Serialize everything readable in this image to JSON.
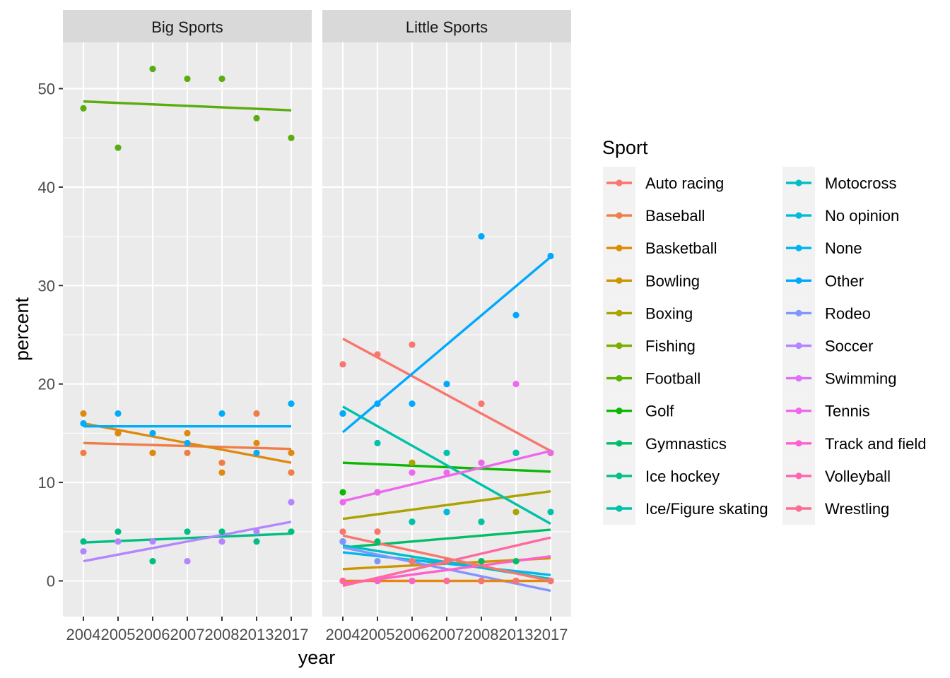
{
  "chart_data": {
    "type": "scatter",
    "xlabel": "year",
    "ylabel": "percent",
    "x_categories": [
      "2004",
      "2005",
      "2006",
      "2007",
      "2008",
      "2013",
      "2017"
    ],
    "y_ticks": [
      0,
      10,
      20,
      30,
      40,
      50
    ],
    "ylim": [
      -3.6,
      55
    ],
    "grid": true,
    "legend_title": "Sport",
    "legend_position": "right",
    "facets": [
      {
        "label": "Big Sports",
        "series": [
          {
            "name": "Baseball",
            "color": "#F07D47",
            "values": [
              13,
              15,
              13,
              13,
              12,
              17,
              11
            ],
            "trend": [
              14.0,
              13.4
            ]
          },
          {
            "name": "Basketball",
            "color": "#DE8A0E",
            "values": [
              17,
              15,
              13,
              15,
              11,
              14,
              13
            ],
            "trend": [
              16.0,
              12.0
            ]
          },
          {
            "name": "Football",
            "color": "#5BAC0E",
            "values": [
              48,
              44,
              52,
              51,
              51,
              47,
              45
            ],
            "trend": [
              48.7,
              47.8
            ]
          },
          {
            "name": "Ice hockey",
            "color": "#00BF84",
            "values": [
              4,
              5,
              2,
              5,
              5,
              4,
              5
            ],
            "trend": [
              3.9,
              4.8
            ]
          },
          {
            "name": "Other",
            "color": "#00ADFA",
            "values": [
              16,
              17,
              15,
              14,
              17,
              13,
              18
            ],
            "trend": [
              15.7,
              15.7
            ]
          },
          {
            "name": "Soccer",
            "color": "#B385FF",
            "values": [
              3,
              4,
              4,
              2,
              4,
              5,
              8
            ],
            "trend": [
              2.0,
              6.0
            ]
          }
        ]
      },
      {
        "label": "Little Sports",
        "series": [
          {
            "name": "Auto racing",
            "color": "#F8766D",
            "values": [
              22,
              23,
              24,
              20,
              18,
              13,
              13
            ],
            "trend": [
              24.6,
              13.2
            ]
          },
          {
            "name": "Bowling",
            "color": "#CD9600",
            "values": [
              0,
              0,
              0,
              0,
              0,
              0,
              0
            ],
            "trend": [
              1.2,
              2.3
            ]
          },
          {
            "name": "Boxing",
            "color": "#ABA300",
            "values": [
              null,
              9,
              12,
              7,
              12,
              7,
              13
            ],
            "trend": [
              6.3,
              9.1
            ]
          },
          {
            "name": "Golf",
            "color": "#0CB702",
            "values": [
              9,
              9,
              6,
              7,
              6,
              13,
              13
            ],
            "trend": [
              12.0,
              11.1
            ]
          },
          {
            "name": "Gymnastics",
            "color": "#00BE67",
            "values": [
              4,
              4,
              2,
              2,
              2,
              2,
              0
            ],
            "trend": [
              3.4,
              5.2
            ]
          },
          {
            "name": "Ice/Figure skating",
            "color": "#00C1A9",
            "values": [
              17,
              14,
              6,
              13,
              6,
              13,
              7
            ],
            "trend": [
              17.7,
              5.8
            ]
          },
          {
            "name": "Motocross",
            "color": "#00BFC4",
            "values": [
              4,
              0,
              2,
              0,
              0,
              0,
              0
            ],
            "trend": [
              3.6,
              0.2
            ]
          },
          {
            "name": "No opinion",
            "color": "#00B8E7",
            "values": [
              4,
              0,
              0,
              7,
              0,
              0,
              0
            ],
            "trend": [
              2.9,
              0.6
            ]
          },
          {
            "name": "None",
            "color": "#00A9FF",
            "values": [
              17,
              18,
              18,
              20,
              35,
              27,
              33
            ],
            "trend": [
              15.1,
              32.9
            ]
          },
          {
            "name": "Rodeo",
            "color": "#8494FF",
            "values": [
              4,
              2,
              2,
              2,
              0,
              0,
              0
            ],
            "trend": [
              3.4,
              -1.0
            ]
          },
          {
            "name": "Swimming",
            "color": "#E68613",
            "values": [
              0,
              0,
              0,
              0,
              0,
              0,
              0
            ],
            "trend": [
              0.0,
              0.0
            ]
          },
          {
            "name": "Tennis",
            "color": "#ED68ED",
            "values": [
              8,
              9,
              11,
              11,
              12,
              20,
              13
            ],
            "trend": [
              8.1,
              13.2
            ]
          },
          {
            "name": "Track and field",
            "color": "#FF61CC",
            "values": [
              0,
              0,
              0,
              0,
              0,
              0,
              0
            ],
            "trend": [
              -0.3,
              2.5
            ]
          },
          {
            "name": "Volleyball",
            "color": "#FF68A1",
            "values": [
              0,
              5,
              2,
              0,
              0,
              0,
              0
            ],
            "trend": [
              -0.5,
              4.4
            ]
          },
          {
            "name": "Wrestling",
            "color": "#F8766D",
            "values": [
              5,
              5,
              2,
              2,
              0,
              0,
              0
            ],
            "trend": [
              4.6,
              0.0
            ]
          }
        ]
      }
    ],
    "legend": [
      {
        "name": "Auto racing",
        "color": "#F8766D"
      },
      {
        "name": "Baseball",
        "color": "#EF7F47"
      },
      {
        "name": "Basketball",
        "color": "#DE8C00"
      },
      {
        "name": "Bowling",
        "color": "#CD9600"
      },
      {
        "name": "Boxing",
        "color": "#ABA300"
      },
      {
        "name": "Fishing",
        "color": "#7CAE00"
      },
      {
        "name": "Football",
        "color": "#5BB300"
      },
      {
        "name": "Golf",
        "color": "#0CB702"
      },
      {
        "name": "Gymnastics",
        "color": "#00BE67"
      },
      {
        "name": "Ice hockey",
        "color": "#00C08B"
      },
      {
        "name": "Ice/Figure skating",
        "color": "#00C1A9"
      },
      {
        "name": "Motocross",
        "color": "#00BFC4"
      },
      {
        "name": "No opinion",
        "color": "#00BBDA"
      },
      {
        "name": "None",
        "color": "#00B4EF"
      },
      {
        "name": "Other",
        "color": "#00A9FF"
      },
      {
        "name": "Rodeo",
        "color": "#7F96FF"
      },
      {
        "name": "Soccer",
        "color": "#B385FF"
      },
      {
        "name": "Swimming",
        "color": "#DE71F9"
      },
      {
        "name": "Tennis",
        "color": "#EF67EB"
      },
      {
        "name": "Track and field",
        "color": "#FD61D1"
      },
      {
        "name": "Volleyball",
        "color": "#FF64B2"
      },
      {
        "name": "Wrestling",
        "color": "#FF6C91"
      }
    ]
  }
}
